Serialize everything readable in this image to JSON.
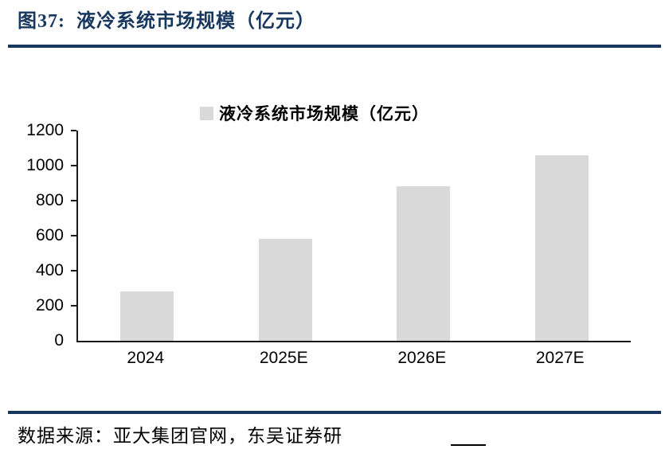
{
  "header": {
    "title": "图37:  液冷系统市场规模（亿元）"
  },
  "chart_data": {
    "type": "bar",
    "title": "液冷系统市场规模（亿元）",
    "legend_position": "top",
    "categories": [
      "2024",
      "2025E",
      "2026E",
      "2027E"
    ],
    "values": [
      280,
      580,
      880,
      1060
    ],
    "xlabel": "",
    "ylabel": "",
    "ylim": [
      0,
      1200
    ],
    "yticks": [
      0,
      200,
      400,
      600,
      800,
      1000,
      1200
    ],
    "grid": false,
    "bar_color": "#d9d9d9",
    "axis_color": "#1a1a1a"
  },
  "footer": {
    "source": "数据来源：亚大集团官网，东吴证券研"
  }
}
